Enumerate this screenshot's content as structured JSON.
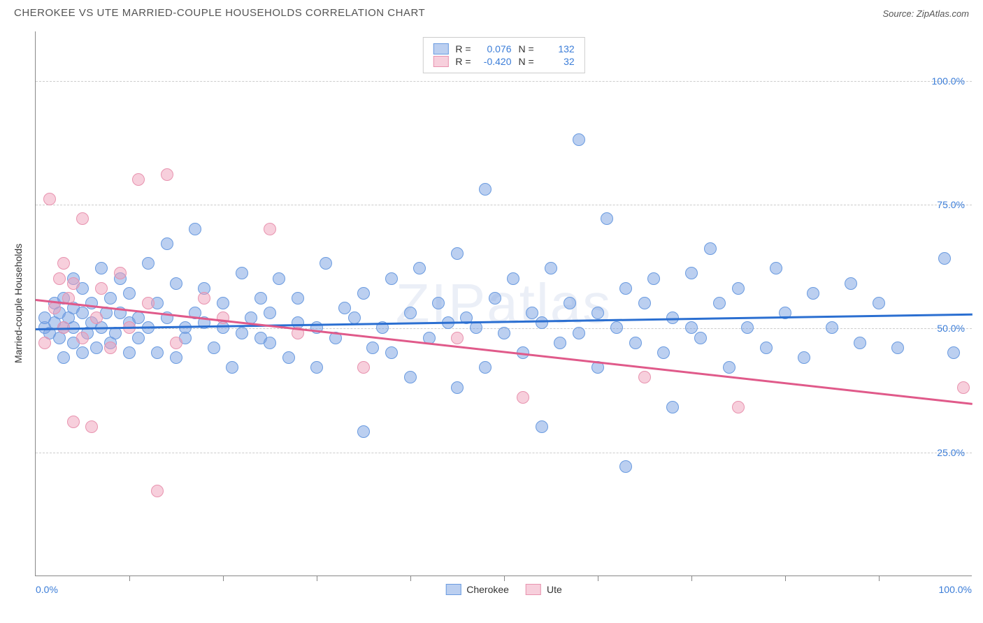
{
  "title": "CHEROKEE VS UTE MARRIED-COUPLE HOUSEHOLDS CORRELATION CHART",
  "source": "Source: ZipAtlas.com",
  "watermark": "ZIPatlas",
  "ylabel": "Married-couple Households",
  "chart": {
    "type": "scatter",
    "xlim": [
      0,
      100
    ],
    "ylim": [
      0,
      110
    ],
    "grid_y": [
      25,
      50,
      75,
      100
    ],
    "grid_color": "#cccccc",
    "background_color": "#ffffff",
    "x_ticks_minor": [
      10,
      20,
      30,
      40,
      50,
      60,
      70,
      80,
      90
    ],
    "x_tick_labels": {
      "left": "0.0%",
      "right": "100.0%"
    },
    "y_tick_labels": [
      "25.0%",
      "50.0%",
      "75.0%",
      "100.0%"
    ],
    "axis_label_color": "#3b7dd8",
    "point_radius": 9,
    "series": [
      {
        "name": "Cherokee",
        "color_fill": "rgba(120,160,225,0.5)",
        "color_stroke": "#6a9be0",
        "trend_color": "#2b6fd1",
        "R": "0.076",
        "N": "132",
        "trend": {
          "x1": 0,
          "y1": 50,
          "x2": 100,
          "y2": 53
        },
        "points": [
          [
            1,
            50
          ],
          [
            1,
            52
          ],
          [
            1.5,
            49
          ],
          [
            2,
            51
          ],
          [
            2,
            55
          ],
          [
            2.5,
            48
          ],
          [
            2.5,
            53
          ],
          [
            3,
            44
          ],
          [
            3,
            56
          ],
          [
            3,
            50
          ],
          [
            3.5,
            52
          ],
          [
            4,
            60
          ],
          [
            4,
            47
          ],
          [
            4,
            50
          ],
          [
            4,
            54
          ],
          [
            5,
            58
          ],
          [
            5,
            53
          ],
          [
            5,
            45
          ],
          [
            5.5,
            49
          ],
          [
            6,
            51
          ],
          [
            6,
            55
          ],
          [
            6.5,
            46
          ],
          [
            7,
            62
          ],
          [
            7,
            50
          ],
          [
            7.5,
            53
          ],
          [
            8,
            56
          ],
          [
            8,
            47
          ],
          [
            8.5,
            49
          ],
          [
            9,
            53
          ],
          [
            9,
            60
          ],
          [
            10,
            45
          ],
          [
            10,
            51
          ],
          [
            10,
            57
          ],
          [
            11,
            52
          ],
          [
            11,
            48
          ],
          [
            12,
            63
          ],
          [
            12,
            50
          ],
          [
            13,
            55
          ],
          [
            13,
            45
          ],
          [
            14,
            67
          ],
          [
            14,
            52
          ],
          [
            15,
            44
          ],
          [
            15,
            59
          ],
          [
            16,
            50
          ],
          [
            16,
            48
          ],
          [
            17,
            70
          ],
          [
            17,
            53
          ],
          [
            18,
            51
          ],
          [
            18,
            58
          ],
          [
            19,
            46
          ],
          [
            20,
            55
          ],
          [
            20,
            50
          ],
          [
            21,
            42
          ],
          [
            22,
            61
          ],
          [
            22,
            49
          ],
          [
            23,
            52
          ],
          [
            24,
            56
          ],
          [
            24,
            48
          ],
          [
            25,
            53
          ],
          [
            25,
            47
          ],
          [
            26,
            60
          ],
          [
            27,
            44
          ],
          [
            28,
            51
          ],
          [
            28,
            56
          ],
          [
            30,
            50
          ],
          [
            30,
            42
          ],
          [
            31,
            63
          ],
          [
            32,
            48
          ],
          [
            33,
            54
          ],
          [
            34,
            52
          ],
          [
            35,
            29
          ],
          [
            35,
            57
          ],
          [
            36,
            46
          ],
          [
            37,
            50
          ],
          [
            38,
            60
          ],
          [
            38,
            45
          ],
          [
            40,
            53
          ],
          [
            40,
            40
          ],
          [
            41,
            62
          ],
          [
            42,
            48
          ],
          [
            43,
            55
          ],
          [
            44,
            51
          ],
          [
            45,
            65
          ],
          [
            45,
            38
          ],
          [
            46,
            52
          ],
          [
            47,
            50
          ],
          [
            48,
            78
          ],
          [
            48,
            42
          ],
          [
            49,
            56
          ],
          [
            50,
            49
          ],
          [
            51,
            60
          ],
          [
            52,
            45
          ],
          [
            53,
            53
          ],
          [
            54,
            30
          ],
          [
            54,
            51
          ],
          [
            55,
            62
          ],
          [
            56,
            47
          ],
          [
            57,
            55
          ],
          [
            58,
            88
          ],
          [
            58,
            49
          ],
          [
            60,
            53
          ],
          [
            60,
            42
          ],
          [
            61,
            72
          ],
          [
            62,
            50
          ],
          [
            63,
            58
          ],
          [
            63,
            22
          ],
          [
            64,
            47
          ],
          [
            65,
            55
          ],
          [
            66,
            60
          ],
          [
            67,
            45
          ],
          [
            68,
            34
          ],
          [
            68,
            52
          ],
          [
            70,
            50
          ],
          [
            70,
            61
          ],
          [
            71,
            48
          ],
          [
            72,
            66
          ],
          [
            73,
            55
          ],
          [
            74,
            42
          ],
          [
            75,
            58
          ],
          [
            76,
            50
          ],
          [
            78,
            46
          ],
          [
            79,
            62
          ],
          [
            80,
            53
          ],
          [
            82,
            44
          ],
          [
            83,
            57
          ],
          [
            85,
            50
          ],
          [
            87,
            59
          ],
          [
            88,
            47
          ],
          [
            90,
            55
          ],
          [
            92,
            46
          ],
          [
            97,
            64
          ],
          [
            98,
            45
          ]
        ]
      },
      {
        "name": "Ute",
        "color_fill": "rgba(240,160,185,0.5)",
        "color_stroke": "#e893af",
        "trend_color": "#e05a8a",
        "R": "-0.420",
        "N": "32",
        "trend": {
          "x1": 0,
          "y1": 56,
          "x2": 100,
          "y2": 35
        },
        "points": [
          [
            1,
            47
          ],
          [
            1.5,
            76
          ],
          [
            2,
            54
          ],
          [
            2.5,
            60
          ],
          [
            3,
            50
          ],
          [
            3,
            63
          ],
          [
            3.5,
            56
          ],
          [
            4,
            31
          ],
          [
            4,
            59
          ],
          [
            5,
            48
          ],
          [
            5,
            72
          ],
          [
            6,
            30
          ],
          [
            6.5,
            52
          ],
          [
            7,
            58
          ],
          [
            8,
            46
          ],
          [
            9,
            61
          ],
          [
            10,
            50
          ],
          [
            11,
            80
          ],
          [
            12,
            55
          ],
          [
            13,
            17
          ],
          [
            14,
            81
          ],
          [
            15,
            47
          ],
          [
            18,
            56
          ],
          [
            20,
            52
          ],
          [
            25,
            70
          ],
          [
            28,
            49
          ],
          [
            35,
            42
          ],
          [
            45,
            48
          ],
          [
            52,
            36
          ],
          [
            65,
            40
          ],
          [
            75,
            34
          ],
          [
            99,
            38
          ]
        ]
      }
    ]
  },
  "legend": {
    "items": [
      "Cherokee",
      "Ute"
    ]
  }
}
